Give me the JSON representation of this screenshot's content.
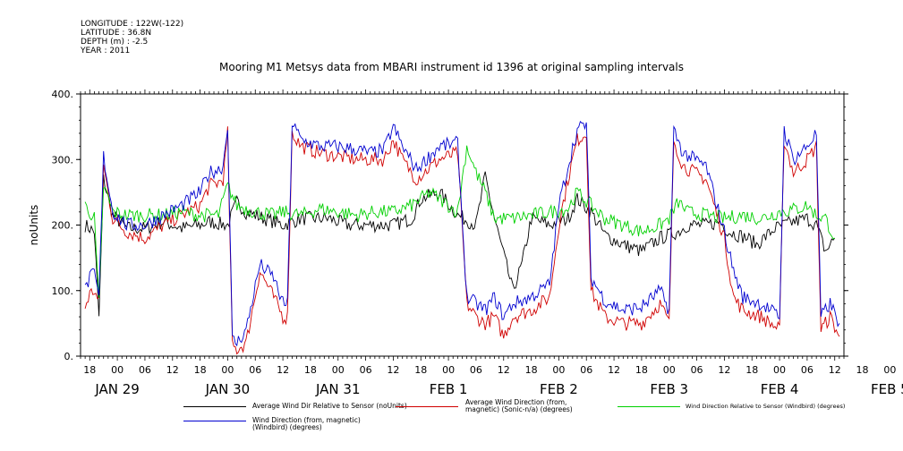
{
  "meta_lines": [
    "LONGITUDE : 122W(-122)",
    "LATITUDE : 36.8N",
    "DEPTH (m) : -2.5",
    "YEAR : 2011"
  ],
  "chart_data": {
    "type": "line",
    "title": "Mooring M1 Metsys data from MBARI instrument id 1396 at original sampling intervals",
    "ylabel": "noUnits",
    "ylim": [
      0,
      400
    ],
    "yticks": [
      0,
      100,
      200,
      300,
      400
    ],
    "yticklabels": [
      "0.",
      "100.",
      "200.",
      "300.",
      "400."
    ],
    "xlim_hours": [
      -8,
      158
    ],
    "hour_ticks": [
      "18",
      "00",
      "06",
      "12",
      "18",
      "00",
      "06",
      "12",
      "18",
      "00",
      "06",
      "12",
      "18",
      "00",
      "06",
      "12",
      "18",
      "00",
      "06",
      "12",
      "18",
      "00",
      "06",
      "12",
      "18",
      "00",
      "06",
      "12",
      "18",
      "00",
      "06",
      "12"
    ],
    "day_labels": [
      "JAN 29",
      "JAN 30",
      "JAN 31",
      "FEB  1",
      "FEB  2",
      "FEB  3",
      "FEB  4",
      "FEB  5"
    ],
    "grid": false,
    "series": [
      {
        "name": "Average Wind Dir Relative to Sensor (noUnits)",
        "color": "#000000",
        "points": [
          [
            -7,
            200
          ],
          [
            -5,
            190
          ],
          [
            -4,
            60
          ],
          [
            -3,
            270
          ],
          [
            -1,
            215
          ],
          [
            2,
            195
          ],
          [
            6,
            195
          ],
          [
            10,
            205
          ],
          [
            14,
            195
          ],
          [
            18,
            200
          ],
          [
            20,
            205
          ],
          [
            24,
            200
          ],
          [
            26,
            235
          ],
          [
            28,
            220
          ],
          [
            32,
            210
          ],
          [
            36,
            200
          ],
          [
            40,
            210
          ],
          [
            46,
            210
          ],
          [
            50,
            200
          ],
          [
            55,
            200
          ],
          [
            60,
            200
          ],
          [
            64,
            210
          ],
          [
            66,
            240
          ],
          [
            70,
            250
          ],
          [
            74,
            215
          ],
          [
            78,
            200
          ],
          [
            80,
            275
          ],
          [
            82,
            210
          ],
          [
            86,
            100
          ],
          [
            88,
            140
          ],
          [
            90,
            210
          ],
          [
            94,
            200
          ],
          [
            98,
            210
          ],
          [
            100,
            240
          ],
          [
            103,
            220
          ],
          [
            106,
            185
          ],
          [
            110,
            170
          ],
          [
            114,
            160
          ],
          [
            118,
            180
          ],
          [
            122,
            190
          ],
          [
            124,
            200
          ],
          [
            128,
            200
          ],
          [
            131,
            205
          ],
          [
            133,
            190
          ],
          [
            137,
            180
          ],
          [
            139,
            170
          ],
          [
            143,
            195
          ],
          [
            147,
            205
          ],
          [
            150,
            210
          ],
          [
            152,
            200
          ],
          [
            154,
            160
          ],
          [
            156,
            180
          ]
        ]
      },
      {
        "name": "Average Wind Direction (from, magnetic) (Sonic-n/a) (degrees)",
        "color": "#d00000",
        "points": [
          [
            -7,
            75
          ],
          [
            -6,
            95
          ],
          [
            -5,
            100
          ],
          [
            -4,
            80
          ],
          [
            -3,
            290
          ],
          [
            -1,
            210
          ],
          [
            2,
            190
          ],
          [
            6,
            180
          ],
          [
            10,
            200
          ],
          [
            14,
            215
          ],
          [
            18,
            230
          ],
          [
            20,
            260
          ],
          [
            22,
            265
          ],
          [
            23,
            270
          ],
          [
            24,
            340
          ],
          [
            25,
            15
          ],
          [
            26,
            10
          ],
          [
            28,
            20
          ],
          [
            31,
            130
          ],
          [
            34,
            90
          ],
          [
            36,
            60
          ],
          [
            37,
            60
          ],
          [
            38,
            340
          ],
          [
            40,
            320
          ],
          [
            44,
            310
          ],
          [
            48,
            305
          ],
          [
            52,
            300
          ],
          [
            55,
            300
          ],
          [
            58,
            300
          ],
          [
            60,
            330
          ],
          [
            62,
            300
          ],
          [
            65,
            270
          ],
          [
            70,
            300
          ],
          [
            74,
            310
          ],
          [
            76,
            80
          ],
          [
            78,
            60
          ],
          [
            80,
            50
          ],
          [
            82,
            60
          ],
          [
            84,
            30
          ],
          [
            86,
            60
          ],
          [
            90,
            70
          ],
          [
            94,
            90
          ],
          [
            96,
            200
          ],
          [
            98,
            270
          ],
          [
            100,
            330
          ],
          [
            102,
            340
          ],
          [
            103,
            100
          ],
          [
            106,
            60
          ],
          [
            110,
            50
          ],
          [
            114,
            50
          ],
          [
            118,
            80
          ],
          [
            120,
            50
          ],
          [
            121,
            330
          ],
          [
            123,
            290
          ],
          [
            128,
            270
          ],
          [
            132,
            180
          ],
          [
            134,
            90
          ],
          [
            136,
            70
          ],
          [
            140,
            60
          ],
          [
            144,
            40
          ],
          [
            145,
            330
          ],
          [
            147,
            280
          ],
          [
            150,
            300
          ],
          [
            152,
            320
          ],
          [
            153,
            40
          ],
          [
            155,
            60
          ],
          [
            157,
            30
          ]
        ]
      },
      {
        "name": "Wind Direction Relative to Sensor (Windbird) (degrees)",
        "color": "#00d000",
        "points": [
          [
            -7,
            230
          ],
          [
            -5,
            210
          ],
          [
            -4,
            80
          ],
          [
            -3,
            260
          ],
          [
            -1,
            220
          ],
          [
            2,
            215
          ],
          [
            6,
            215
          ],
          [
            10,
            215
          ],
          [
            14,
            220
          ],
          [
            18,
            215
          ],
          [
            22,
            215
          ],
          [
            24,
            260
          ],
          [
            26,
            230
          ],
          [
            30,
            220
          ],
          [
            34,
            215
          ],
          [
            36,
            220
          ],
          [
            40,
            215
          ],
          [
            44,
            225
          ],
          [
            48,
            220
          ],
          [
            52,
            215
          ],
          [
            56,
            220
          ],
          [
            60,
            220
          ],
          [
            64,
            230
          ],
          [
            68,
            250
          ],
          [
            72,
            230
          ],
          [
            74,
            220
          ],
          [
            76,
            320
          ],
          [
            78,
            280
          ],
          [
            80,
            250
          ],
          [
            82,
            210
          ],
          [
            86,
            210
          ],
          [
            90,
            215
          ],
          [
            94,
            220
          ],
          [
            98,
            225
          ],
          [
            100,
            250
          ],
          [
            103,
            230
          ],
          [
            106,
            210
          ],
          [
            110,
            200
          ],
          [
            114,
            190
          ],
          [
            118,
            200
          ],
          [
            120,
            210
          ],
          [
            122,
            235
          ],
          [
            124,
            220
          ],
          [
            128,
            215
          ],
          [
            132,
            210
          ],
          [
            136,
            215
          ],
          [
            140,
            210
          ],
          [
            144,
            220
          ],
          [
            148,
            225
          ],
          [
            150,
            230
          ],
          [
            152,
            215
          ],
          [
            154,
            210
          ],
          [
            156,
            180
          ]
        ]
      },
      {
        "name": "Wind Direction (from, magnetic) (Windbird) (degrees)",
        "color": "#0000d0",
        "points": [
          [
            -7,
            100
          ],
          [
            -6,
            120
          ],
          [
            -5,
            125
          ],
          [
            -4,
            90
          ],
          [
            -3,
            305
          ],
          [
            -1,
            220
          ],
          [
            2,
            200
          ],
          [
            6,
            200
          ],
          [
            10,
            215
          ],
          [
            14,
            230
          ],
          [
            18,
            250
          ],
          [
            20,
            280
          ],
          [
            22,
            285
          ],
          [
            23,
            290
          ],
          [
            24,
            355
          ],
          [
            25,
            25
          ],
          [
            26,
            20
          ],
          [
            28,
            40
          ],
          [
            31,
            140
          ],
          [
            34,
            120
          ],
          [
            36,
            80
          ],
          [
            37,
            80
          ],
          [
            38,
            355
          ],
          [
            40,
            330
          ],
          [
            44,
            320
          ],
          [
            48,
            320
          ],
          [
            52,
            315
          ],
          [
            55,
            310
          ],
          [
            58,
            315
          ],
          [
            60,
            350
          ],
          [
            62,
            320
          ],
          [
            65,
            285
          ],
          [
            70,
            320
          ],
          [
            74,
            325
          ],
          [
            76,
            90
          ],
          [
            78,
            80
          ],
          [
            80,
            70
          ],
          [
            82,
            90
          ],
          [
            84,
            60
          ],
          [
            86,
            80
          ],
          [
            90,
            90
          ],
          [
            94,
            110
          ],
          [
            96,
            230
          ],
          [
            98,
            290
          ],
          [
            100,
            345
          ],
          [
            102,
            355
          ],
          [
            103,
            120
          ],
          [
            106,
            85
          ],
          [
            110,
            70
          ],
          [
            114,
            75
          ],
          [
            118,
            100
          ],
          [
            120,
            70
          ],
          [
            121,
            345
          ],
          [
            123,
            310
          ],
          [
            128,
            290
          ],
          [
            132,
            190
          ],
          [
            134,
            130
          ],
          [
            136,
            90
          ],
          [
            140,
            80
          ],
          [
            144,
            60
          ],
          [
            145,
            345
          ],
          [
            147,
            300
          ],
          [
            150,
            320
          ],
          [
            152,
            340
          ],
          [
            153,
            60
          ],
          [
            155,
            80
          ],
          [
            157,
            50
          ]
        ]
      }
    ]
  }
}
